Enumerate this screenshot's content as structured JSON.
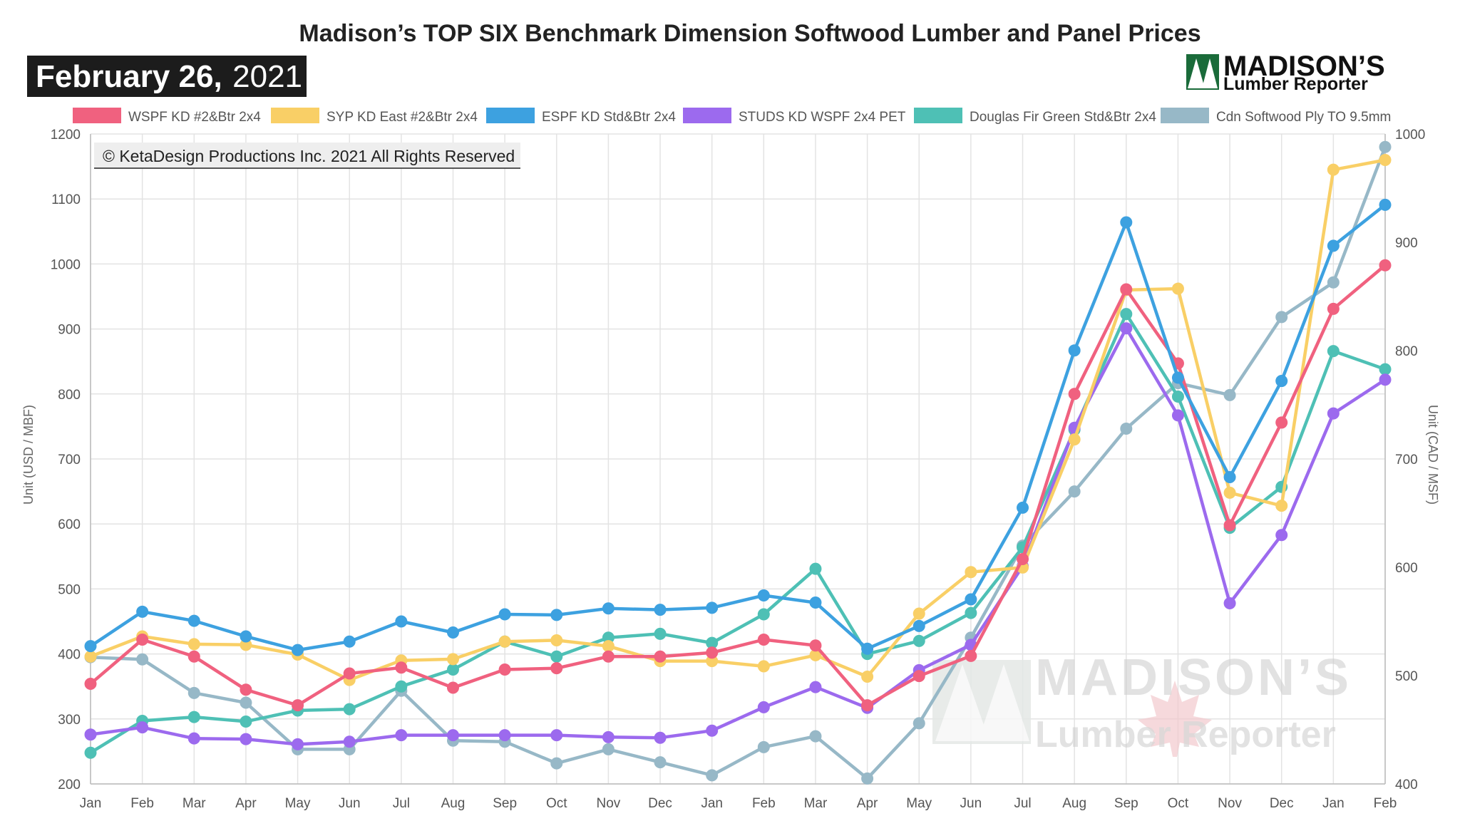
{
  "chart_data": {
    "type": "line",
    "title": "Madison’s TOP SIX Benchmark Dimension Softwood Lumber and Panel Prices",
    "date_bold": "February 26,",
    "date_year": "2021",
    "copyright": "© KetaDesign Productions Inc. 2021 All Rights Reserved",
    "logo_top": "MADISON’S",
    "logo_bottom": "Lumber Reporter",
    "watermark_top": "MADISON’S",
    "watermark_bottom": "Lumber  Reporter",
    "ylabel_left": "Unit (USD / MBF)",
    "ylabel_right": "Unit (CAD / MSF)",
    "ylim_left": [
      200,
      1200
    ],
    "yticks_left": [
      200,
      300,
      400,
      500,
      600,
      700,
      800,
      900,
      1000,
      1100,
      1200
    ],
    "ylim_right": [
      400,
      1000
    ],
    "yticks_right": [
      400,
      500,
      600,
      700,
      800,
      900,
      1000
    ],
    "categories": [
      "Jan",
      "Feb",
      "Mar",
      "Apr",
      "May",
      "Jun",
      "Jul",
      "Aug",
      "Sep",
      "Oct",
      "Nov",
      "Dec",
      "Jan",
      "Feb",
      "Mar",
      "Apr",
      "May",
      "Jun",
      "Jul",
      "Aug",
      "Sep",
      "Oct",
      "Nov",
      "Dec",
      "Jan",
      "Feb"
    ],
    "grid": true,
    "legend_position": "top",
    "series": [
      {
        "name": "WSPF KD #2&Btr 2x4",
        "color": "#f0617f",
        "axis": "left",
        "values": [
          354,
          422,
          396,
          345,
          321,
          370,
          379,
          348,
          376,
          378,
          396,
          396,
          402,
          422,
          413,
          321,
          366,
          397,
          546,
          800,
          961,
          847,
          598,
          756,
          931,
          998
        ]
      },
      {
        "name": "SYP KD East #2&Btr 2x4",
        "color": "#f9cf66",
        "axis": "left",
        "values": [
          396,
          427,
          415,
          414,
          399,
          360,
          390,
          392,
          419,
          421,
          412,
          389,
          389,
          381,
          398,
          365,
          462,
          526,
          533,
          730,
          960,
          962,
          648,
          628,
          1145,
          1160
        ]
      },
      {
        "name": "ESPF KD Std&Btr 2x4",
        "color": "#3da1e0",
        "axis": "left",
        "values": [
          412,
          465,
          451,
          427,
          406,
          419,
          450,
          433,
          461,
          460,
          470,
          468,
          471,
          490,
          479,
          408,
          443,
          484,
          625,
          867,
          1064,
          825,
          672,
          820,
          1028,
          1091
        ]
      },
      {
        "name": "STUDS KD WSPF 2x4 PET",
        "color": "#9c6aee",
        "axis": "left",
        "values": [
          276,
          287,
          270,
          269,
          261,
          265,
          275,
          275,
          275,
          275,
          272,
          271,
          282,
          318,
          349,
          317,
          375,
          414,
          535,
          748,
          901,
          767,
          478,
          583,
          770,
          822
        ]
      },
      {
        "name": "Douglas Fir Green Std&Btr 2x4",
        "color": "#4ec0b5",
        "axis": "left",
        "values": [
          248,
          297,
          303,
          296,
          313,
          315,
          350,
          376,
          419,
          396,
          425,
          431,
          417,
          461,
          531,
          400,
          420,
          463,
          564,
          745,
          923,
          796,
          594,
          657,
          866,
          838
        ]
      },
      {
        "name": "Cdn Softwood Ply TO 9.5mm",
        "color": "#97b8c7",
        "axis": "right",
        "values": [
          517,
          515,
          484,
          475,
          432,
          432,
          486,
          440,
          439,
          419,
          432,
          420,
          408,
          434,
          444,
          405,
          456,
          535,
          620,
          670,
          728,
          770,
          759,
          831,
          863,
          988
        ]
      }
    ]
  }
}
